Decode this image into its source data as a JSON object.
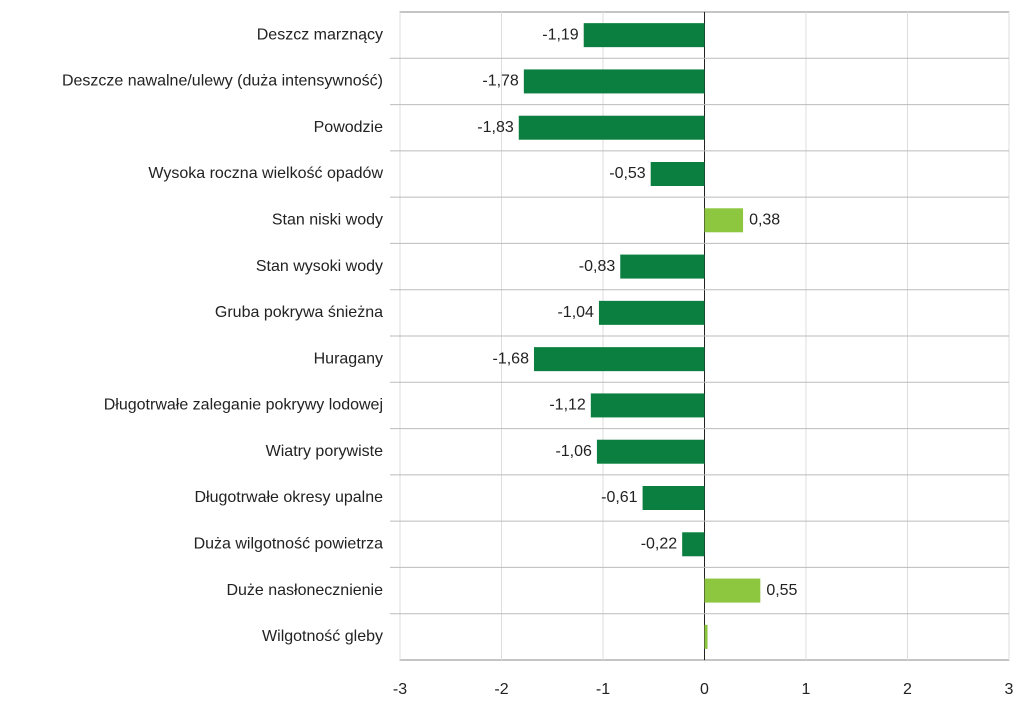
{
  "chart_data": {
    "type": "barh",
    "categories": [
      "Deszcz marznący",
      "Deszcze nawalne/ulewy (duża intensywność)",
      "Powodzie",
      "Wysoka roczna wielkość opadów",
      "Stan niski wody",
      "Stan wysoki wody",
      "Gruba pokrywa śnieżna",
      "Huragany",
      "Długotrwałe zaleganie pokrywy lodowej",
      "Wiatry porywiste",
      "Długotrwałe okresy upalne",
      "Duża wilgotność powietrza",
      "Duże nasłonecznienie",
      "Wilgotność gleby"
    ],
    "values": [
      -1.19,
      -1.78,
      -1.83,
      -0.53,
      0.38,
      -0.83,
      -1.04,
      -1.68,
      -1.12,
      -1.06,
      -0.61,
      -0.22,
      0.55,
      0.03
    ],
    "value_labels": [
      "-1,19",
      "-1,78",
      "-1,83",
      "-0,53",
      "0,38",
      "-0,83",
      "-1,04",
      "-1,68",
      "-1,12",
      "-1,06",
      "-0,61",
      "-0,22",
      "0,55",
      null
    ],
    "negative_color": "#0b7f3f",
    "positive_color": "#8dc63f",
    "xlim": [
      -3,
      3
    ],
    "xticks": [
      -3,
      -2,
      -1,
      0,
      1,
      2,
      3
    ],
    "grid": true
  }
}
